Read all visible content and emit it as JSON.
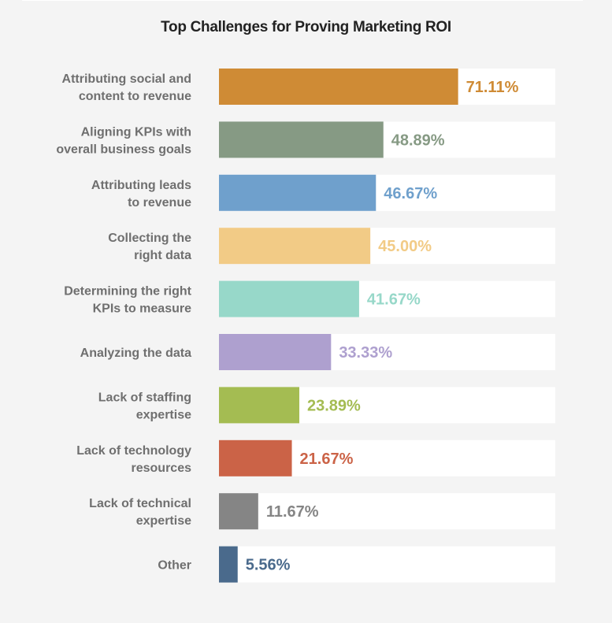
{
  "chart_data": {
    "type": "bar",
    "orientation": "horizontal",
    "title": "Top Challenges for Proving Marketing ROI",
    "xlim": [
      0,
      100
    ],
    "grid": false,
    "categories": [
      [
        "Attributing social and",
        "content to revenue"
      ],
      [
        "Aligning KPIs with",
        "overall business goals"
      ],
      [
        "Attributing leads",
        "to revenue"
      ],
      [
        "Collecting the",
        "right data"
      ],
      [
        "Determining the right",
        "KPIs to measure"
      ],
      [
        "Analyzing the data"
      ],
      [
        "Lack of staffing",
        "expertise"
      ],
      [
        "Lack of technology",
        "resources"
      ],
      [
        "Lack of technical",
        "expertise"
      ],
      [
        "Other"
      ]
    ],
    "values": [
      71.11,
      48.89,
      46.67,
      45.0,
      41.67,
      33.33,
      23.89,
      21.67,
      11.67,
      5.56
    ],
    "value_labels": [
      "71.11%",
      "48.89%",
      "46.67%",
      "45.00%",
      "41.67%",
      "33.33%",
      "23.89%",
      "21.67%",
      "11.67%",
      "5.56%"
    ],
    "colors": [
      "#CF8B35",
      "#869A84",
      "#6FA0CC",
      "#F2CB86",
      "#97D8C9",
      "#AEA0CF",
      "#A4BC52",
      "#CB6347",
      "#858585",
      "#4A6A8C"
    ],
    "track_color": "#FFFFFF"
  }
}
